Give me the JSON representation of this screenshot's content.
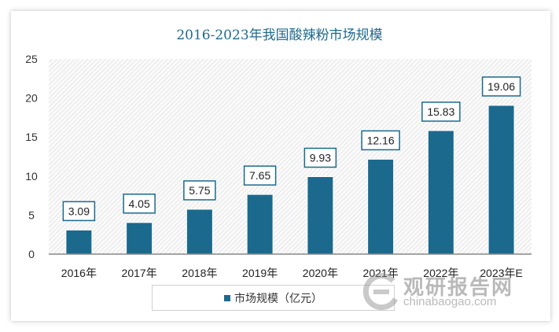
{
  "chart_data": {
    "type": "bar",
    "title": "2016-2023年我国酸辣粉市场规模",
    "categories": [
      "2016年",
      "2017年",
      "2018年",
      "2019年",
      "2020年",
      "2021年",
      "2022年",
      "2023年E"
    ],
    "series": [
      {
        "name": "市场规模（亿元）",
        "values": [
          3.09,
          4.05,
          5.75,
          7.65,
          9.93,
          12.16,
          15.83,
          19.06
        ]
      }
    ],
    "data_labels": [
      "3.09",
      "4.05",
      "5.75",
      "7.65",
      "9.93",
      "12.16",
      "15.83",
      "19.06"
    ],
    "ylim": [
      0,
      25
    ],
    "yticks": [
      0,
      5,
      10,
      15,
      20,
      25
    ],
    "grid": false,
    "legend": "bottom",
    "colors": {
      "bar": "#1b6a8e",
      "title": "#1f6a8c"
    }
  },
  "watermark": {
    "cn": "观研报告网",
    "en": "chinabaogao.com"
  }
}
